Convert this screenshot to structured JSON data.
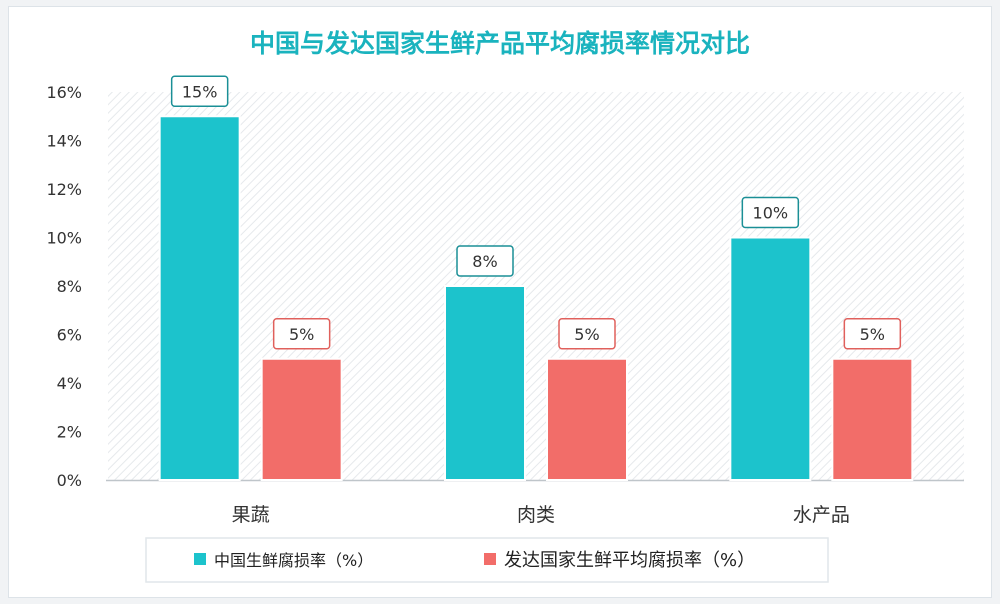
{
  "chart_data": {
    "type": "bar",
    "title": "中国与发达国家生鲜产品平均腐损率情况对比",
    "categories": [
      "果蔬",
      "肉类",
      "水产品"
    ],
    "series": [
      {
        "name": "中国生鲜腐损率（%）",
        "values": [
          15,
          8,
          10
        ],
        "labels": [
          "15%",
          "8%",
          "10%"
        ],
        "color": "#1cc3cc",
        "label_color": "#1a8f96"
      },
      {
        "name": "发达国家生鲜平均腐损率（%）",
        "values": [
          5,
          5,
          5
        ],
        "labels": [
          "5%",
          "5%",
          "5%"
        ],
        "color": "#f26d69",
        "label_color": "#e0605c"
      }
    ],
    "yticks": [
      "0%",
      "2%",
      "4%",
      "6%",
      "8%",
      "10%",
      "12%",
      "14%",
      "16%"
    ],
    "ylim": [
      0,
      16
    ],
    "legend_position": "bottom",
    "title_color": "#1ab3be",
    "axis_text_color": "#333333"
  }
}
